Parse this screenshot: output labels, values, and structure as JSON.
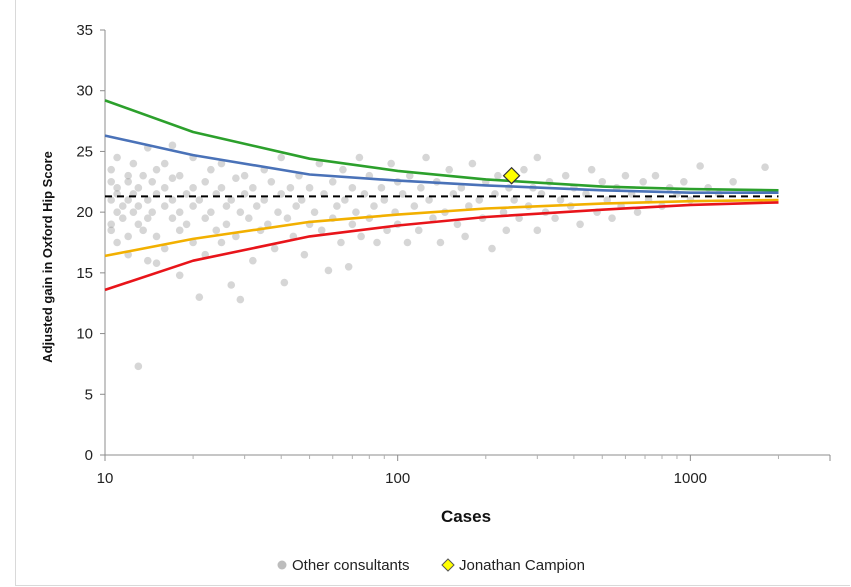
{
  "chart_data": {
    "type": "scatter",
    "title": "",
    "xlabel": "Cases",
    "ylabel": "Adjusted gain in Oxford Hip Score",
    "x_scale": "log",
    "xlim": [
      10,
      3000
    ],
    "ylim": [
      0,
      35
    ],
    "x_ticks": [
      "10",
      "100",
      "1000"
    ],
    "y_ticks": [
      "0",
      "5",
      "10",
      "15",
      "20",
      "25",
      "30",
      "35"
    ],
    "grid": false,
    "legend_position": "bottom",
    "legend": {
      "scatter_label": "Other consultants",
      "highlight_label": "Jonathan Campion"
    },
    "mean_line": {
      "y": 21.3,
      "style": "dashed",
      "color": "#000000"
    },
    "funnel_limits": [
      {
        "color": "#2ca02c",
        "points": [
          [
            10,
            29.2
          ],
          [
            20,
            26.6
          ],
          [
            50,
            24.4
          ],
          [
            100,
            23.4
          ],
          [
            200,
            22.7
          ],
          [
            500,
            22.1
          ],
          [
            1000,
            21.9
          ],
          [
            2000,
            21.8
          ]
        ]
      },
      {
        "color": "#4a72b8",
        "points": [
          [
            10,
            26.3
          ],
          [
            20,
            24.7
          ],
          [
            50,
            23.1
          ],
          [
            100,
            22.6
          ],
          [
            200,
            22.2
          ],
          [
            500,
            21.8
          ],
          [
            1000,
            21.6
          ],
          [
            2000,
            21.6
          ]
        ]
      },
      {
        "color": "#f2b000",
        "points": [
          [
            10,
            16.4
          ],
          [
            20,
            17.8
          ],
          [
            50,
            19.2
          ],
          [
            100,
            19.8
          ],
          [
            200,
            20.3
          ],
          [
            500,
            20.7
          ],
          [
            1000,
            20.9
          ],
          [
            2000,
            21.0
          ]
        ]
      },
      {
        "color": "#e8141a",
        "points": [
          [
            10,
            13.6
          ],
          [
            20,
            16.0
          ],
          [
            50,
            18.0
          ],
          [
            100,
            18.9
          ],
          [
            200,
            19.6
          ],
          [
            500,
            20.2
          ],
          [
            1000,
            20.6
          ],
          [
            2000,
            20.8
          ]
        ]
      }
    ],
    "highlight_point": {
      "x": 245,
      "y": 23.0,
      "color": "#ffff00"
    },
    "scatter_points": [
      [
        10.5,
        21.0
      ],
      [
        10.5,
        22.5
      ],
      [
        10.5,
        19.0
      ],
      [
        10.5,
        18.5
      ],
      [
        10.5,
        23.5
      ],
      [
        11,
        21.5
      ],
      [
        11,
        20.0
      ],
      [
        11,
        24.5
      ],
      [
        11,
        17.5
      ],
      [
        11,
        22.0
      ],
      [
        11.5,
        20.5
      ],
      [
        11.5,
        19.5
      ],
      [
        12,
        21.0
      ],
      [
        12,
        23.0
      ],
      [
        12,
        22.5
      ],
      [
        12,
        18.0
      ],
      [
        12,
        16.5
      ],
      [
        12.5,
        20.0
      ],
      [
        12.5,
        24.0
      ],
      [
        12.5,
        21.5
      ],
      [
        13,
        19.0
      ],
      [
        13,
        22.0
      ],
      [
        13,
        7.3
      ],
      [
        13,
        20.5
      ],
      [
        13.5,
        23.0
      ],
      [
        13.5,
        18.5
      ],
      [
        14,
        25.3
      ],
      [
        14,
        21.0
      ],
      [
        14,
        16.0
      ],
      [
        14,
        19.5
      ],
      [
        14.5,
        22.5
      ],
      [
        14.5,
        20.0
      ],
      [
        15,
        15.8
      ],
      [
        15,
        23.5
      ],
      [
        15,
        21.5
      ],
      [
        15,
        18.0
      ],
      [
        16,
        20.5
      ],
      [
        16,
        22.0
      ],
      [
        16,
        24.0
      ],
      [
        16,
        17.0
      ],
      [
        17,
        21.0
      ],
      [
        17,
        19.5
      ],
      [
        17,
        25.5
      ],
      [
        17,
        22.8
      ],
      [
        18,
        20.0
      ],
      [
        18,
        18.5
      ],
      [
        18,
        23.0
      ],
      [
        18,
        14.8
      ],
      [
        19,
        21.5
      ],
      [
        19,
        19.0
      ],
      [
        20,
        22.0
      ],
      [
        20,
        17.5
      ],
      [
        20,
        24.5
      ],
      [
        20,
        20.5
      ],
      [
        21,
        13.0
      ],
      [
        21,
        21.0
      ],
      [
        22,
        19.5
      ],
      [
        22,
        22.5
      ],
      [
        22,
        16.5
      ],
      [
        23,
        20.0
      ],
      [
        23,
        23.5
      ],
      [
        24,
        18.5
      ],
      [
        24,
        21.5
      ],
      [
        25,
        17.5
      ],
      [
        25,
        22.0
      ],
      [
        25,
        24.0
      ],
      [
        26,
        20.5
      ],
      [
        26,
        19.0
      ],
      [
        27,
        14.0
      ],
      [
        27,
        21.0
      ],
      [
        28,
        22.8
      ],
      [
        28,
        18.0
      ],
      [
        29,
        20.0
      ],
      [
        29,
        12.8
      ],
      [
        30,
        21.5
      ],
      [
        30,
        23.0
      ],
      [
        31,
        19.5
      ],
      [
        32,
        16.0
      ],
      [
        32,
        22.0
      ],
      [
        33,
        20.5
      ],
      [
        34,
        18.5
      ],
      [
        35,
        21.0
      ],
      [
        35,
        23.5
      ],
      [
        36,
        19.0
      ],
      [
        37,
        22.5
      ],
      [
        38,
        17.0
      ],
      [
        39,
        20.0
      ],
      [
        40,
        21.5
      ],
      [
        40,
        24.5
      ],
      [
        41,
        14.2
      ],
      [
        42,
        19.5
      ],
      [
        43,
        22.0
      ],
      [
        44,
        18.0
      ],
      [
        45,
        20.5
      ],
      [
        46,
        23.0
      ],
      [
        47,
        21.0
      ],
      [
        48,
        16.5
      ],
      [
        50,
        19.0
      ],
      [
        50,
        22.0
      ],
      [
        52,
        20.0
      ],
      [
        54,
        24.0
      ],
      [
        55,
        18.5
      ],
      [
        56,
        21.5
      ],
      [
        58,
        15.2
      ],
      [
        60,
        22.5
      ],
      [
        60,
        19.5
      ],
      [
        62,
        20.5
      ],
      [
        64,
        17.5
      ],
      [
        65,
        23.5
      ],
      [
        66,
        21.0
      ],
      [
        68,
        15.5
      ],
      [
        70,
        19.0
      ],
      [
        70,
        22.0
      ],
      [
        72,
        20.0
      ],
      [
        74,
        24.5
      ],
      [
        75,
        18.0
      ],
      [
        77,
        21.5
      ],
      [
        80,
        23.0
      ],
      [
        80,
        19.5
      ],
      [
        83,
        20.5
      ],
      [
        85,
        17.5
      ],
      [
        88,
        22.0
      ],
      [
        90,
        21.0
      ],
      [
        92,
        18.5
      ],
      [
        95,
        24.0
      ],
      [
        98,
        20.0
      ],
      [
        100,
        22.5
      ],
      [
        100,
        19.0
      ],
      [
        104,
        21.5
      ],
      [
        108,
        17.5
      ],
      [
        110,
        23.0
      ],
      [
        114,
        20.5
      ],
      [
        118,
        18.5
      ],
      [
        120,
        22.0
      ],
      [
        125,
        24.5
      ],
      [
        128,
        21.0
      ],
      [
        132,
        19.5
      ],
      [
        136,
        22.5
      ],
      [
        140,
        17.5
      ],
      [
        145,
        20.0
      ],
      [
        150,
        23.5
      ],
      [
        155,
        21.5
      ],
      [
        160,
        19.0
      ],
      [
        165,
        22.0
      ],
      [
        170,
        18.0
      ],
      [
        175,
        20.5
      ],
      [
        180,
        24.0
      ],
      [
        190,
        21.0
      ],
      [
        195,
        19.5
      ],
      [
        200,
        22.5
      ],
      [
        210,
        17.0
      ],
      [
        215,
        21.5
      ],
      [
        220,
        23.0
      ],
      [
        230,
        20.0
      ],
      [
        235,
        18.5
      ],
      [
        240,
        22.0
      ],
      [
        250,
        21.0
      ],
      [
        260,
        19.5
      ],
      [
        270,
        23.5
      ],
      [
        280,
        20.5
      ],
      [
        290,
        22.0
      ],
      [
        300,
        24.5
      ],
      [
        300,
        18.5
      ],
      [
        310,
        21.5
      ],
      [
        320,
        20.0
      ],
      [
        330,
        22.5
      ],
      [
        345,
        19.5
      ],
      [
        360,
        21.0
      ],
      [
        375,
        23.0
      ],
      [
        390,
        20.5
      ],
      [
        400,
        22.0
      ],
      [
        420,
        19.0
      ],
      [
        440,
        21.5
      ],
      [
        460,
        23.5
      ],
      [
        480,
        20.0
      ],
      [
        500,
        22.5
      ],
      [
        520,
        21.0
      ],
      [
        540,
        19.5
      ],
      [
        560,
        22.0
      ],
      [
        580,
        20.5
      ],
      [
        600,
        23.0
      ],
      [
        630,
        21.5
      ],
      [
        660,
        20.0
      ],
      [
        690,
        22.5
      ],
      [
        720,
        21.0
      ],
      [
        760,
        23.0
      ],
      [
        800,
        20.5
      ],
      [
        850,
        22.0
      ],
      [
        900,
        21.5
      ],
      [
        950,
        22.5
      ],
      [
        1000,
        21.0
      ],
      [
        1080,
        23.8
      ],
      [
        1150,
        22.0
      ],
      [
        1250,
        21.5
      ],
      [
        1400,
        22.5
      ],
      [
        1800,
        23.7
      ]
    ]
  }
}
